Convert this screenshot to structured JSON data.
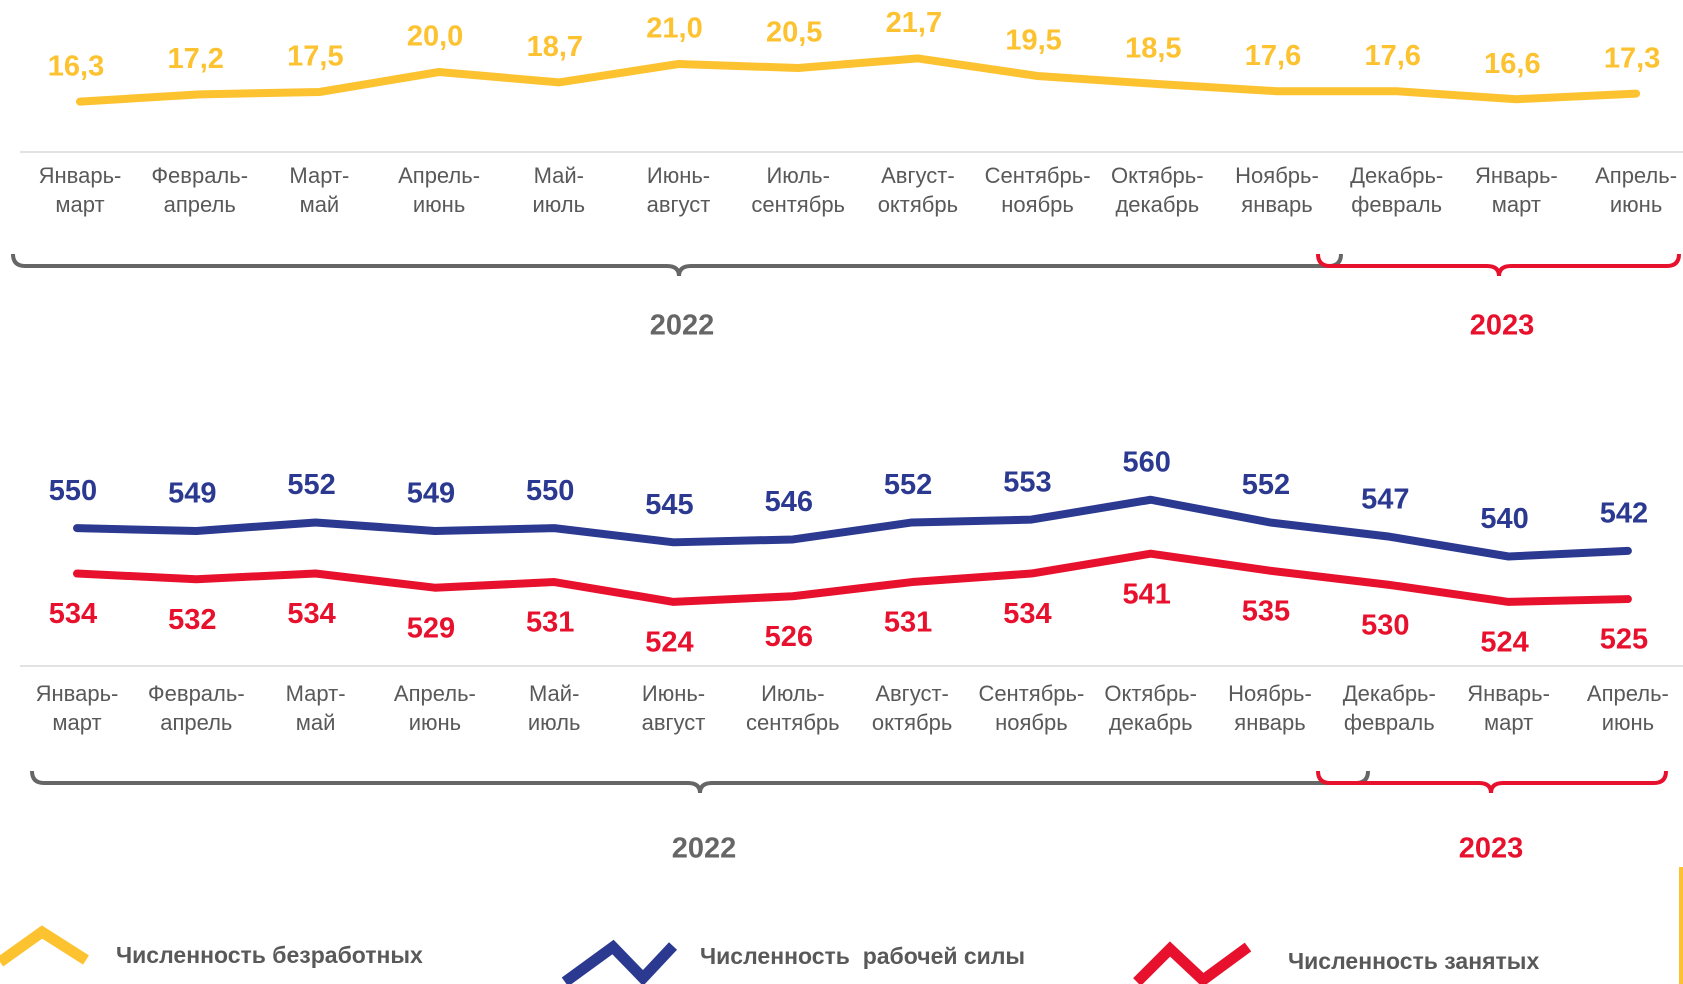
{
  "chart_data": [
    {
      "type": "line",
      "categories": [
        "Январь-\nмарт",
        "Февраль-\nапрель",
        "Март-\nмай",
        "Апрель-\nиюнь",
        "Май-\nиюль",
        "Июнь-\nавгуст",
        "Июль-\nсентябрь",
        "Август-\nоктябрь",
        "Сентябрь-\nноябрь",
        "Октябрь-\nдекабрь",
        "Ноябрь-\nянварь",
        "Декабрь-\nфевраль",
        "Январь-\nмарт",
        "Апрель-\nиюнь"
      ],
      "series": [
        {
          "name": "Численность безработных",
          "color": "#fcc230",
          "values": [
            16.3,
            17.2,
            17.5,
            20.0,
            18.7,
            21.0,
            20.5,
            21.7,
            19.5,
            18.5,
            17.6,
            17.6,
            16.6,
            17.3
          ],
          "value_labels": [
            "16,3",
            "17,2",
            "17,5",
            "20,0",
            "18,7",
            "21,0",
            "20,5",
            "21,7",
            "19,5",
            "18,5",
            "17,6",
            "17,6",
            "16,6",
            "17,3"
          ]
        }
      ],
      "ylim": [
        10,
        25
      ],
      "groups": [
        {
          "label": "2022",
          "color": "#666666"
        },
        {
          "label": "2023",
          "color": "#e8112d"
        }
      ]
    },
    {
      "type": "line",
      "categories": [
        "Январь-\nмарт",
        "Февраль-\nапрель",
        "Март-\nмай",
        "Апрель-\nиюнь",
        "Май-\nиюль",
        "Июнь-\nавгуст",
        "Июль-\nсентябрь",
        "Август-\nоктябрь",
        "Сентябрь-\nноябрь",
        "Октябрь-\nдекабрь",
        "Ноябрь-\nянварь",
        "Декабрь-\nфевраль",
        "Январь-\nмарт",
        "Апрель-\nиюнь"
      ],
      "series": [
        {
          "name": "Численность  рабочей силы",
          "color": "#2b3990",
          "values": [
            550,
            549,
            552,
            549,
            550,
            545,
            546,
            552,
            553,
            560,
            552,
            547,
            540,
            542
          ]
        },
        {
          "name": "Численность занятых",
          "color": "#e8112d",
          "values": [
            534,
            532,
            534,
            529,
            531,
            524,
            526,
            531,
            534,
            541,
            535,
            530,
            524,
            525
          ]
        }
      ],
      "ylim": [
        500,
        580
      ],
      "groups": [
        {
          "label": "2022",
          "color": "#666666"
        },
        {
          "label": "2023",
          "color": "#e8112d"
        }
      ]
    }
  ]
}
